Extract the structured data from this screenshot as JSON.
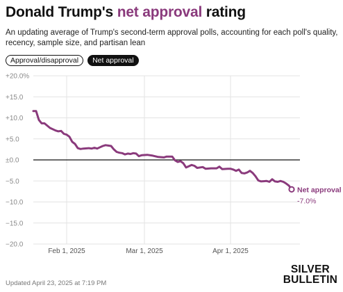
{
  "header": {
    "title_pre": "Donald Trump's ",
    "title_accent": "net approval",
    "title_post": " rating",
    "subtitle": "An updating average of Trump's second-term approval polls, accounting for each poll's quality, recency, sample size, and partisan lean"
  },
  "toggles": [
    {
      "label": "Approval/disapproval",
      "active": false
    },
    {
      "label": "Net approval",
      "active": true
    }
  ],
  "footer": {
    "updated": "Updated April 23, 2025 at 7:19 PM",
    "brand_line1": "SILVER",
    "brand_line2": "BULLETIN"
  },
  "colors": {
    "line": "#8a3a7c",
    "accent_title": "#8a3a7c",
    "grid": "#e3e3e3",
    "axis_text": "#8a8a8a",
    "zero_line": "#111111"
  },
  "chart_data": {
    "type": "line",
    "title": "Donald Trump's net approval rating",
    "y_ticks": [
      "+20.0%",
      "+15.0",
      "+10.0",
      "+5.0",
      "±0.0",
      "−5.0",
      "−10.0",
      "−15.0",
      "−20.0"
    ],
    "ylim": [
      -20,
      20
    ],
    "x_ticks": [
      {
        "date": "2025-02-01",
        "label": "Feb 1, 2025"
      },
      {
        "date": "2025-03-01",
        "label": "Mar 1, 2025"
      },
      {
        "date": "2025-04-01",
        "label": "Apr 1, 2025"
      }
    ],
    "xlim": [
      "2025-01-20",
      "2025-04-26"
    ],
    "grid": true,
    "series": [
      {
        "name": "Net approval",
        "end_label": "Net approval",
        "end_value_label": "-7.0%",
        "points": [
          [
            "2025-01-20",
            11.6
          ],
          [
            "2025-01-21",
            11.6
          ],
          [
            "2025-01-22",
            9.5
          ],
          [
            "2025-01-23",
            8.7
          ],
          [
            "2025-01-24",
            8.7
          ],
          [
            "2025-01-26",
            7.6
          ],
          [
            "2025-01-28",
            7.0
          ],
          [
            "2025-01-29",
            6.8
          ],
          [
            "2025-01-30",
            6.9
          ],
          [
            "2025-01-31",
            6.2
          ],
          [
            "2025-02-01",
            6.0
          ],
          [
            "2025-02-02",
            5.5
          ],
          [
            "2025-02-03",
            4.3
          ],
          [
            "2025-02-04",
            3.8
          ],
          [
            "2025-02-05",
            2.8
          ],
          [
            "2025-02-06",
            2.6
          ],
          [
            "2025-02-07",
            2.7
          ],
          [
            "2025-02-09",
            2.8
          ],
          [
            "2025-02-10",
            2.7
          ],
          [
            "2025-02-11",
            2.9
          ],
          [
            "2025-02-12",
            2.7
          ],
          [
            "2025-02-13",
            3.0
          ],
          [
            "2025-02-14",
            3.3
          ],
          [
            "2025-02-15",
            3.5
          ],
          [
            "2025-02-16",
            3.4
          ],
          [
            "2025-02-17",
            3.3
          ],
          [
            "2025-02-18",
            2.5
          ],
          [
            "2025-02-19",
            1.9
          ],
          [
            "2025-02-20",
            1.7
          ],
          [
            "2025-02-21",
            1.6
          ],
          [
            "2025-02-22",
            1.3
          ],
          [
            "2025-02-23",
            1.5
          ],
          [
            "2025-02-24",
            1.4
          ],
          [
            "2025-02-25",
            1.6
          ],
          [
            "2025-02-26",
            1.5
          ],
          [
            "2025-02-27",
            0.9
          ],
          [
            "2025-02-28",
            1.1
          ],
          [
            "2025-03-02",
            1.2
          ],
          [
            "2025-03-04",
            1.0
          ],
          [
            "2025-03-06",
            0.7
          ],
          [
            "2025-03-08",
            0.6
          ],
          [
            "2025-03-09",
            0.8
          ],
          [
            "2025-03-11",
            0.8
          ],
          [
            "2025-03-12",
            -0.1
          ],
          [
            "2025-03-13",
            -0.5
          ],
          [
            "2025-03-14",
            -0.3
          ],
          [
            "2025-03-15",
            -0.8
          ],
          [
            "2025-03-16",
            -1.8
          ],
          [
            "2025-03-17",
            -1.5
          ],
          [
            "2025-03-18",
            -1.2
          ],
          [
            "2025-03-19",
            -1.4
          ],
          [
            "2025-03-20",
            -1.9
          ],
          [
            "2025-03-22",
            -1.7
          ],
          [
            "2025-03-23",
            -2.1
          ],
          [
            "2025-03-25",
            -2.0
          ],
          [
            "2025-03-27",
            -2.0
          ],
          [
            "2025-03-28",
            -1.6
          ],
          [
            "2025-03-29",
            -2.2
          ],
          [
            "2025-03-31",
            -2.1
          ],
          [
            "2025-04-01",
            -2.1
          ],
          [
            "2025-04-02",
            -2.3
          ],
          [
            "2025-04-03",
            -2.6
          ],
          [
            "2025-04-04",
            -2.3
          ],
          [
            "2025-04-05",
            -3.1
          ],
          [
            "2025-04-06",
            -3.2
          ],
          [
            "2025-04-07",
            -3.0
          ],
          [
            "2025-04-08",
            -2.6
          ],
          [
            "2025-04-09",
            -3.1
          ],
          [
            "2025-04-10",
            -3.9
          ],
          [
            "2025-04-11",
            -4.9
          ],
          [
            "2025-04-12",
            -5.1
          ],
          [
            "2025-04-14",
            -5.0
          ],
          [
            "2025-04-15",
            -5.2
          ],
          [
            "2025-04-16",
            -4.6
          ],
          [
            "2025-04-17",
            -5.1
          ],
          [
            "2025-04-18",
            -5.2
          ],
          [
            "2025-04-19",
            -5.0
          ],
          [
            "2025-04-20",
            -5.2
          ],
          [
            "2025-04-21",
            -5.6
          ],
          [
            "2025-04-22",
            -6.1
          ],
          [
            "2025-04-23",
            -7.0
          ]
        ]
      }
    ]
  }
}
